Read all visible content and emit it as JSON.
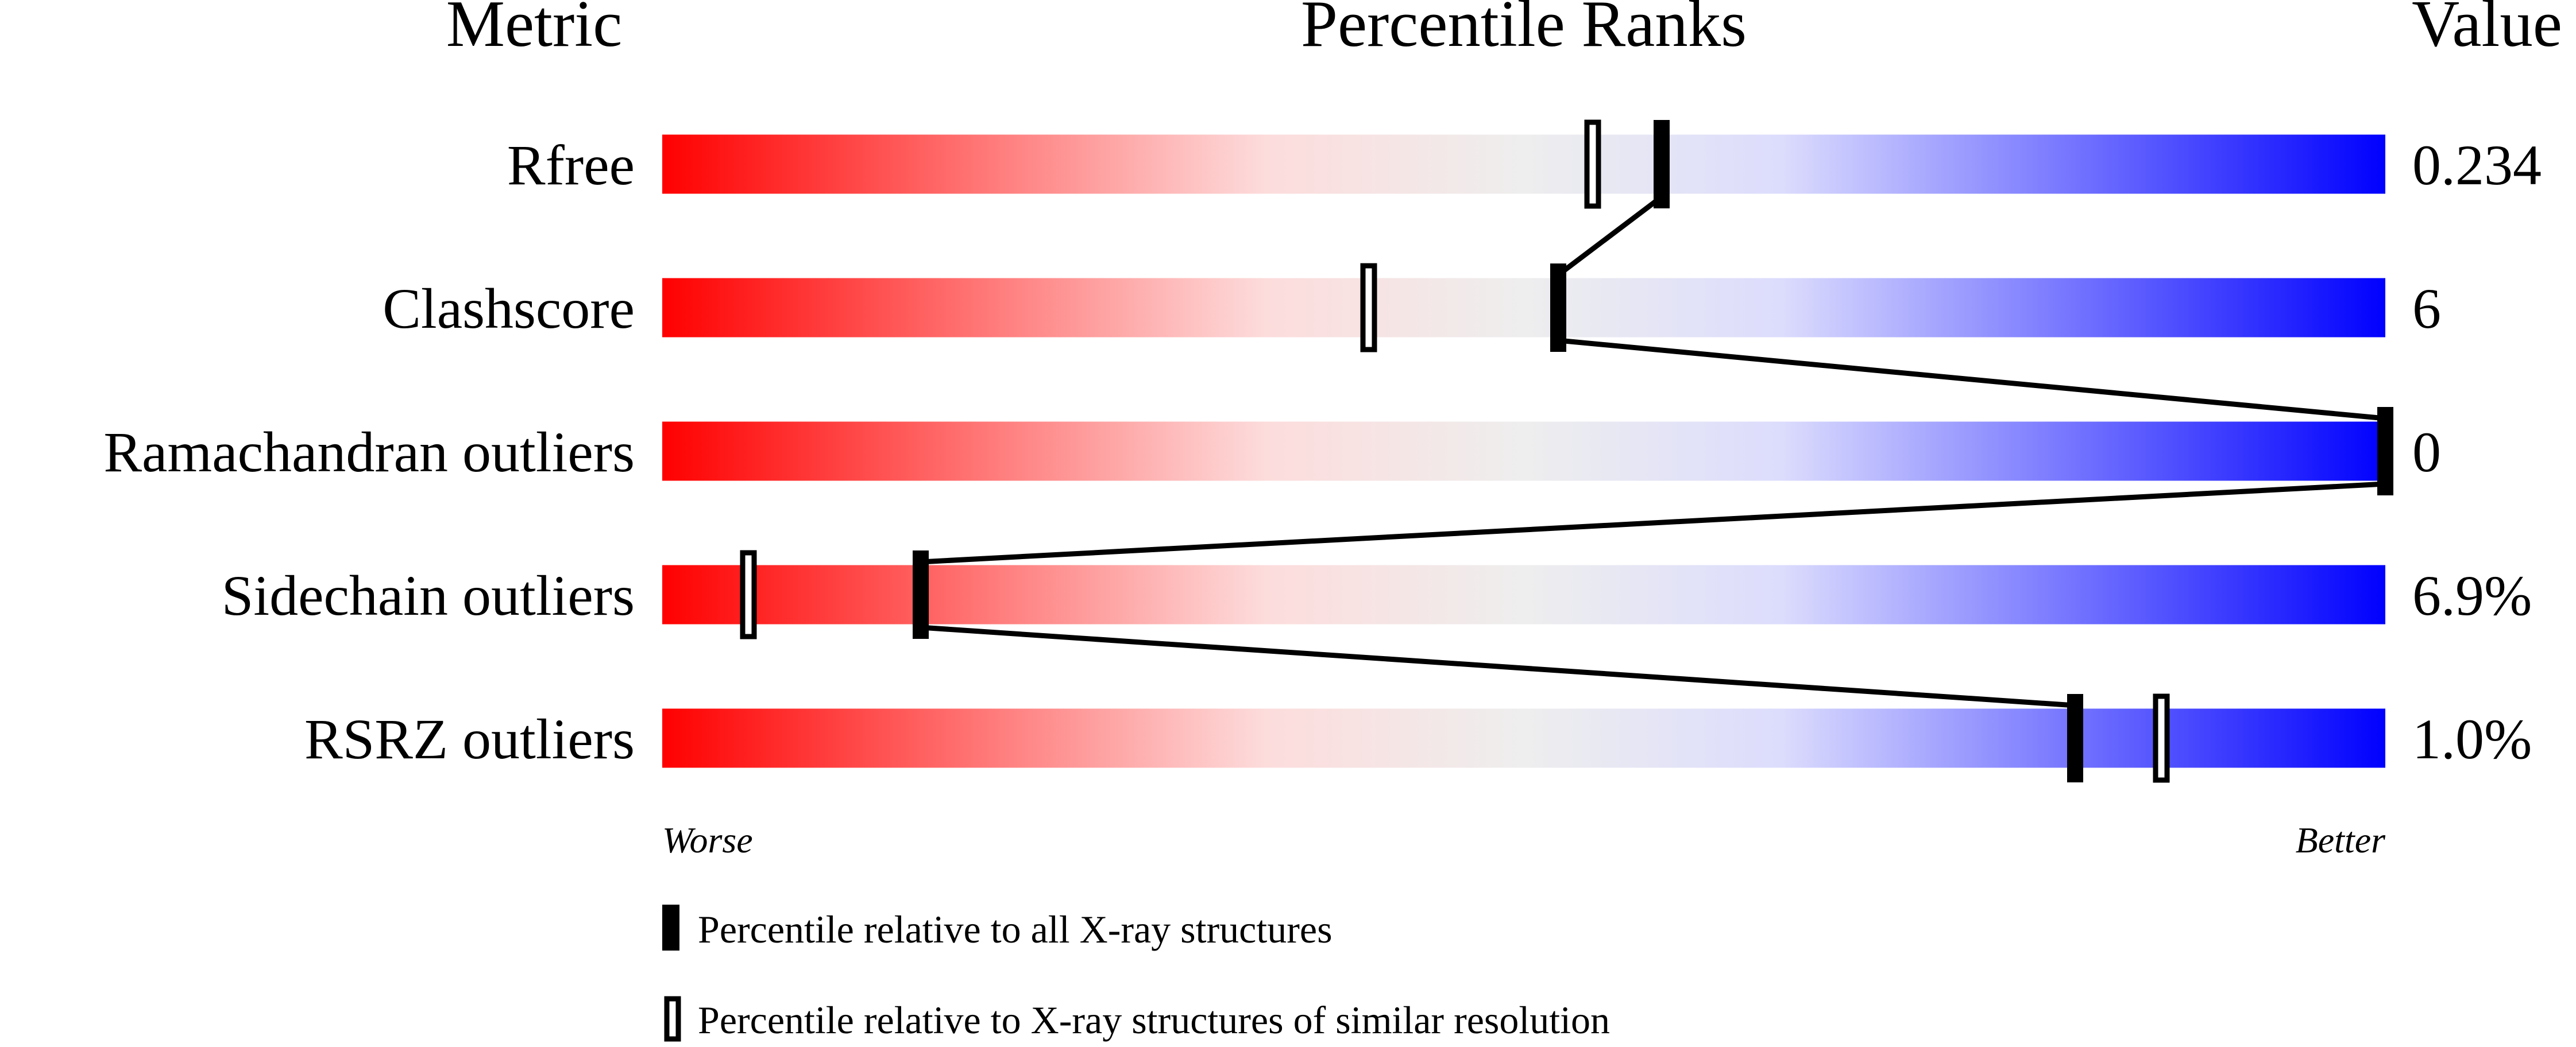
{
  "chart_data": {
    "type": "percentile-slider",
    "headers": {
      "metric": "Metric",
      "ranks": "Percentile Ranks",
      "value": "Value"
    },
    "xlim": [
      0,
      100
    ],
    "gradient_colors": [
      "#ff0000",
      "#eeeeee",
      "#0000ff"
    ],
    "metrics": [
      {
        "name": "Rfree",
        "value": "0.234",
        "percentile_all": 58,
        "percentile_similar": 54
      },
      {
        "name": "Clashscore",
        "value": "6",
        "percentile_all": 52,
        "percentile_similar": 41
      },
      {
        "name": "Ramachandran outliers",
        "value": "0",
        "percentile_all": 100,
        "percentile_similar": 100
      },
      {
        "name": "Sidechain outliers",
        "value": "6.9%",
        "percentile_all": 15,
        "percentile_similar": 5
      },
      {
        "name": "RSRZ outliers",
        "value": "1.0%",
        "percentile_all": 82,
        "percentile_similar": 87
      }
    ],
    "axis_left_label": "Worse",
    "axis_right_label": "Better",
    "legend": [
      {
        "marker": "filled",
        "label": "Percentile relative to all X-ray structures"
      },
      {
        "marker": "open",
        "label": "Percentile relative to X-ray structures of similar resolution"
      }
    ]
  }
}
